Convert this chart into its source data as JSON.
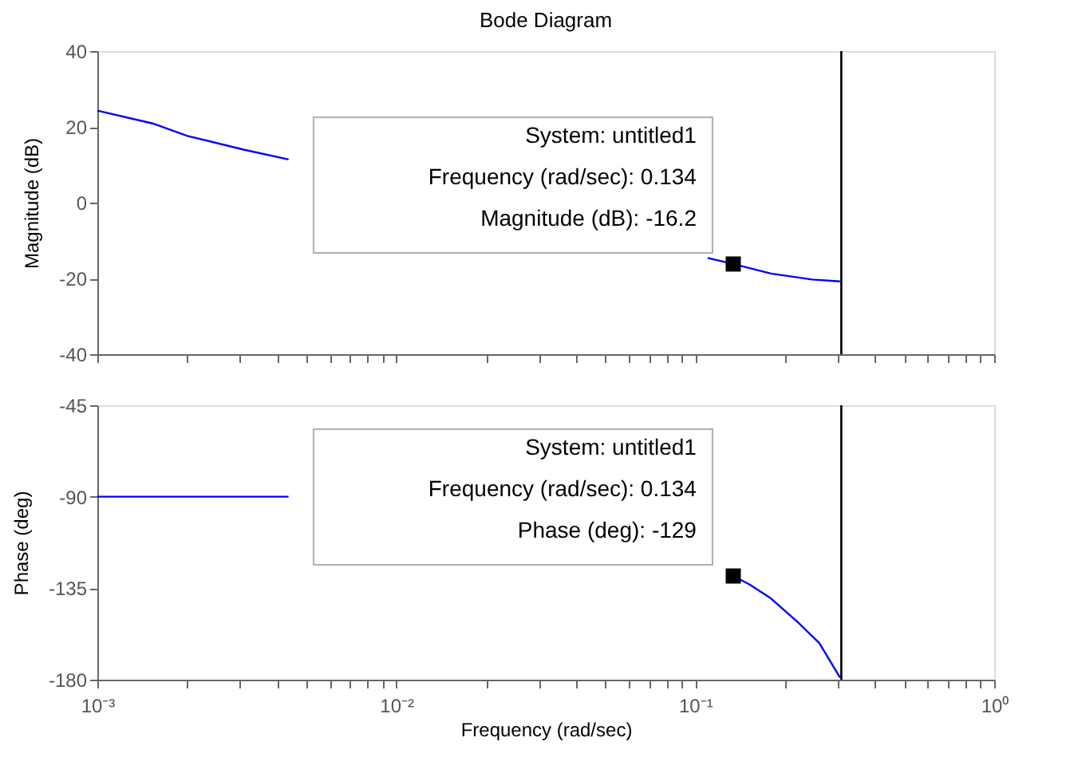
{
  "chart_data": [
    {
      "type": "line",
      "title": "Bode Diagram",
      "ylabel": "Magnitude (dB)",
      "log": "x",
      "grid": false,
      "tick_labels": "y",
      "xlim": [
        0.001,
        1
      ],
      "ylim": [
        -40,
        40
      ],
      "yticks": [
        -40,
        -20,
        0,
        20,
        40
      ],
      "xticks": [
        0.001,
        {
          "value": 0.002,
          "label": null
        },
        {
          "value": 0.003,
          "label": null
        },
        {
          "value": 0.004,
          "label": null
        },
        {
          "value": 0.005,
          "label": null
        },
        {
          "value": 0.006,
          "label": null
        },
        {
          "value": 0.007,
          "label": null
        },
        {
          "value": 0.008,
          "label": null
        },
        {
          "value": 0.009,
          "label": null
        },
        0.01,
        {
          "value": 0.02,
          "label": null
        },
        {
          "value": 0.03,
          "label": null
        },
        {
          "value": 0.04,
          "label": null
        },
        {
          "value": 0.05,
          "label": null
        },
        {
          "value": 0.06,
          "label": null
        },
        {
          "value": 0.07,
          "label": null
        },
        {
          "value": 0.08,
          "label": null
        },
        {
          "value": 0.09,
          "label": null
        },
        0.1,
        {
          "value": 0.2,
          "label": null
        },
        {
          "value": 0.3,
          "label": null
        },
        {
          "value": 0.4,
          "label": null
        },
        {
          "value": 0.5,
          "label": null
        },
        {
          "value": 0.6,
          "label": null
        },
        {
          "value": 0.7,
          "label": null
        },
        {
          "value": 0.8,
          "label": null
        },
        {
          "value": 0.9,
          "label": null
        },
        1
      ],
      "series": [
        {
          "color": "#0000ff",
          "marker": "none",
          "line_style": "solid",
          "x": [
            0.001,
            0.00153,
            0.002,
            0.00308,
            0.00436,
            0.03,
            0.11,
            0.134,
            0.179,
            0.246,
            0.305
          ],
          "values": [
            24.3,
            20.9,
            17.6,
            14.0,
            11.4,
            null,
            -14.6,
            -16.2,
            -18.7,
            -20.3,
            -20.8
          ]
        },
        {
          "type": "scatter",
          "color": "#000000",
          "marker": "square",
          "x": [
            0.134
          ],
          "values": [
            -16.2
          ]
        }
      ],
      "ref_lines": [
        {
          "axis": "x",
          "value": 0.308,
          "color": "#000000",
          "line_style": "solid"
        }
      ],
      "annotations": [
        {
          "text": "System: untitled1\nFrequency (rad/sec): 0.134\nMagnitude (dB): -16.2",
          "x": 0.134,
          "y": -16.2
        }
      ]
    },
    {
      "type": "line",
      "ylabel": "Phase (deg)",
      "xlabel": "Frequency (rad/sec)",
      "log": "x",
      "grid": false,
      "xlim": [
        0.001,
        1
      ],
      "ylim": [
        -180,
        -45
      ],
      "yticks": [
        -180,
        -135,
        -90,
        -45
      ],
      "xticks": [
        {
          "value": 0.001,
          "label": "10⁻³"
        },
        {
          "value": 0.002,
          "label": null
        },
        {
          "value": 0.003,
          "label": null
        },
        {
          "value": 0.004,
          "label": null
        },
        {
          "value": 0.005,
          "label": null
        },
        {
          "value": 0.006,
          "label": null
        },
        {
          "value": 0.007,
          "label": null
        },
        {
          "value": 0.008,
          "label": null
        },
        {
          "value": 0.009,
          "label": null
        },
        {
          "value": 0.01,
          "label": "10⁻²"
        },
        {
          "value": 0.02,
          "label": null
        },
        {
          "value": 0.03,
          "label": null
        },
        {
          "value": 0.04,
          "label": null
        },
        {
          "value": 0.05,
          "label": null
        },
        {
          "value": 0.06,
          "label": null
        },
        {
          "value": 0.07,
          "label": null
        },
        {
          "value": 0.08,
          "label": null
        },
        {
          "value": 0.09,
          "label": null
        },
        {
          "value": 0.1,
          "label": "10⁻¹"
        },
        {
          "value": 0.2,
          "label": null
        },
        {
          "value": 0.3,
          "label": null
        },
        {
          "value": 0.4,
          "label": null
        },
        {
          "value": 0.5,
          "label": null
        },
        {
          "value": 0.6,
          "label": null
        },
        {
          "value": 0.7,
          "label": null
        },
        {
          "value": 0.8,
          "label": null
        },
        {
          "value": 0.9,
          "label": null
        },
        {
          "value": 1,
          "label": "10⁰"
        }
      ],
      "series": [
        {
          "color": "#0000ff",
          "marker": "none",
          "line_style": "solid",
          "x": [
            0.001,
            0.00436,
            0.03,
            0.134,
            0.152,
            0.179,
            0.221,
            0.26,
            0.305
          ],
          "values": [
            -90,
            -90,
            null,
            -129,
            -133.2,
            -140,
            -151.9,
            -162,
            -179
          ]
        },
        {
          "type": "scatter",
          "color": "#000000",
          "marker": "square",
          "x": [
            0.134
          ],
          "values": [
            -129
          ]
        }
      ],
      "ref_lines": [
        {
          "axis": "x",
          "value": 0.308,
          "color": "#000000",
          "line_style": "solid"
        }
      ],
      "annotations": [
        {
          "text": "System: untitled1\nFrequency (rad/sec): 0.134\nPhase (deg): -129",
          "x": 0.134,
          "y": -129
        }
      ]
    }
  ]
}
